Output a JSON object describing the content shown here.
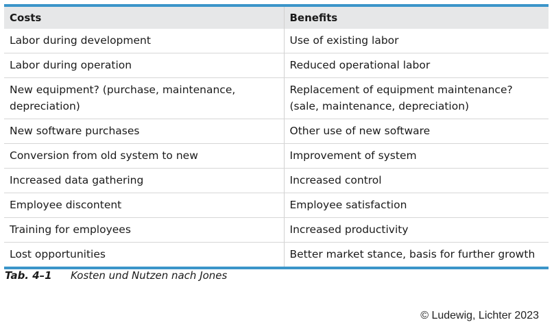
{
  "table": {
    "headers": [
      "Costs",
      "Benefits"
    ],
    "rows": [
      {
        "cost": "Labor during development",
        "benefit": "Use of existing labor"
      },
      {
        "cost": "Labor during operation",
        "benefit": "Reduced operational labor"
      },
      {
        "cost": "New equipment? (purchase, maintenance, depreciation)",
        "benefit": "Replacement of equipment maintenance? (sale, maintenance, depreciation)"
      },
      {
        "cost": "New software purchases",
        "benefit": "Other use of new software"
      },
      {
        "cost": "Conversion from old system to new",
        "benefit": "Improvement of system"
      },
      {
        "cost": "Increased data gathering",
        "benefit": "Increased control"
      },
      {
        "cost": "Employee discontent",
        "benefit": "Employee satisfaction"
      },
      {
        "cost": "Training for employees",
        "benefit": "Increased productivity"
      },
      {
        "cost": "Lost opportunities",
        "benefit": "Better market stance, basis for further growth"
      }
    ],
    "rule_color": "#3b95c9",
    "header_bg": "#e6e7e8"
  },
  "caption": {
    "label": "Tab. 4–1",
    "text": "Kosten und Nutzen nach Jones"
  },
  "copyright": "© Ludewig, Lichter 2023"
}
